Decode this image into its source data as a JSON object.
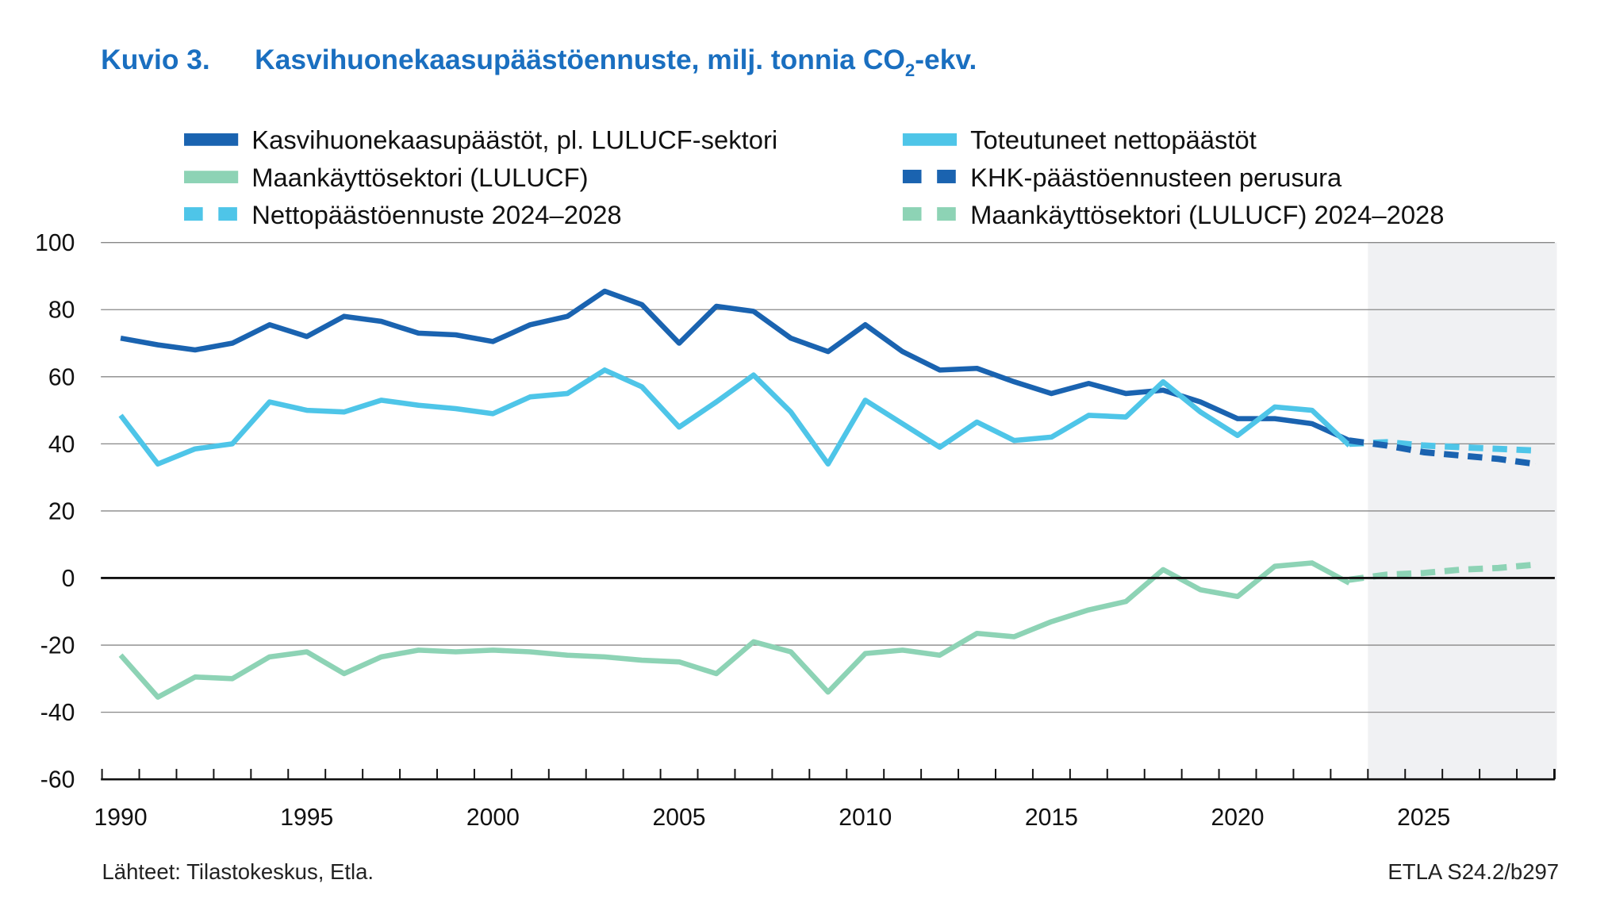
{
  "chart_data": {
    "type": "line",
    "figure_label": "Kuvio 3.",
    "title": "Kasvihuonekaasupäästöennuste, milj. tonnia CO",
    "title_subscript": "2",
    "title_suffix": "-ekv.",
    "ylim": [
      -60,
      100
    ],
    "yticks": [
      100,
      80,
      60,
      40,
      20,
      0,
      -20,
      -40,
      -60
    ],
    "xlim": [
      1990,
      2028
    ],
    "xtick_labels": [
      1990,
      1995,
      2000,
      2005,
      2010,
      2015,
      2020,
      2025
    ],
    "forecast_shade_start": 2023.5,
    "legend_placement": "top",
    "source": "Lähteet: Tilastokeskus, Etla.",
    "code": "ETLA S24.2/b297",
    "series": [
      {
        "name": "Kasvihuonekaasupäästöt, pl. LULUCF-sektori",
        "color": "#1a63b0",
        "dashed": false,
        "x": [
          1990,
          1991,
          1992,
          1993,
          1994,
          1995,
          1996,
          1997,
          1998,
          1999,
          2000,
          2001,
          2002,
          2003,
          2004,
          2005,
          2006,
          2007,
          2008,
          2009,
          2010,
          2011,
          2012,
          2013,
          2014,
          2015,
          2016,
          2017,
          2018,
          2019,
          2020,
          2021,
          2022,
          2023
        ],
        "values": [
          71.5,
          69.5,
          68,
          70,
          75.5,
          72,
          78,
          76.5,
          73,
          72.5,
          70.5,
          75.5,
          78,
          85.5,
          81.5,
          70,
          81,
          79.5,
          71.5,
          67.5,
          75.5,
          67.5,
          62,
          62.5,
          58.5,
          55,
          58,
          55,
          56,
          52.5,
          47.5,
          47.5,
          46,
          41
        ]
      },
      {
        "name": "Toteutuneet nettopäästöt",
        "color": "#4ec5e8",
        "dashed": false,
        "x": [
          1990,
          1991,
          1992,
          1993,
          1994,
          1995,
          1996,
          1997,
          1998,
          1999,
          2000,
          2001,
          2002,
          2003,
          2004,
          2005,
          2006,
          2007,
          2008,
          2009,
          2010,
          2011,
          2012,
          2013,
          2014,
          2015,
          2016,
          2017,
          2018,
          2019,
          2020,
          2021,
          2022,
          2023
        ],
        "values": [
          48.5,
          34,
          38.5,
          40,
          52.5,
          50,
          49.5,
          53,
          51.5,
          50.5,
          49,
          54,
          55,
          62,
          57,
          45,
          52.5,
          60.5,
          49.5,
          34,
          53,
          46,
          39,
          46.5,
          41,
          42,
          48.5,
          48,
          58.5,
          49.5,
          42.5,
          51,
          50,
          39.5
        ]
      },
      {
        "name": "Maankäyttösektori (LULUCF)",
        "color": "#8dd3b5",
        "dashed": false,
        "x": [
          1990,
          1991,
          1992,
          1993,
          1994,
          1995,
          1996,
          1997,
          1998,
          1999,
          2000,
          2001,
          2002,
          2003,
          2004,
          2005,
          2006,
          2007,
          2008,
          2009,
          2010,
          2011,
          2012,
          2013,
          2014,
          2015,
          2016,
          2017,
          2018,
          2019,
          2020,
          2021,
          2022,
          2023
        ],
        "values": [
          -23,
          -35.5,
          -29.5,
          -30,
          -23.5,
          -22,
          -28.5,
          -23.5,
          -21.5,
          -22,
          -21.5,
          -22,
          -23,
          -23.5,
          -24.5,
          -25,
          -28.5,
          -19,
          -22,
          -34,
          -22.5,
          -21.5,
          -23,
          -16.5,
          -17.5,
          -13,
          -9.5,
          -7,
          2.5,
          -3.5,
          -5.5,
          3.5,
          4.5,
          -1.5
        ]
      },
      {
        "name": "KHK-päästöennusteen perusura",
        "color": "#1a63b0",
        "dashed": true,
        "x": [
          2023,
          2024,
          2025,
          2026,
          2027,
          2028
        ],
        "values": [
          41,
          39.5,
          37.5,
          36.5,
          35.5,
          34
        ]
      },
      {
        "name": "Nettopäästöennuste 2024–2028",
        "color": "#4ec5e8",
        "dashed": true,
        "x": [
          2023,
          2024,
          2025,
          2026,
          2027,
          2028
        ],
        "values": [
          40,
          40.5,
          39.5,
          39,
          38.5,
          38
        ]
      },
      {
        "name": "Maankäyttösektori (LULUCF) 2024–2028",
        "color": "#8dd3b5",
        "dashed": true,
        "x": [
          2023,
          2024,
          2025,
          2026,
          2027,
          2028
        ],
        "values": [
          -0.5,
          1,
          1.5,
          2.5,
          3,
          4
        ]
      }
    ],
    "legend_order": [
      0,
      1,
      2,
      3,
      4,
      5
    ]
  }
}
